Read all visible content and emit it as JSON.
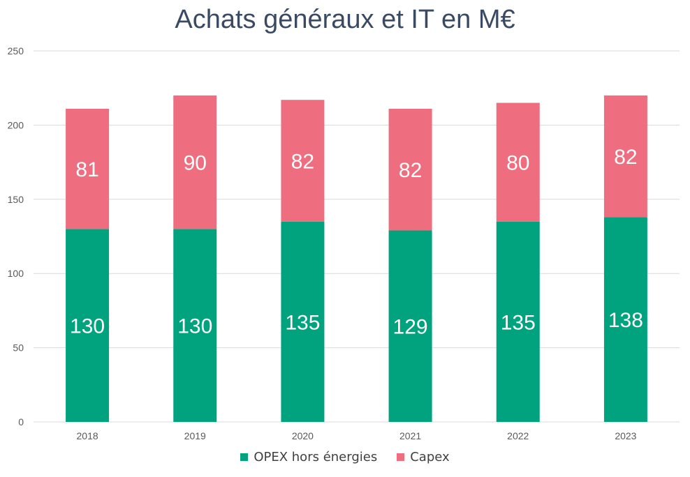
{
  "colors": {
    "opex": "#00a37e",
    "capex": "#ee6e7f",
    "grid": "#d9d9d9",
    "title": "#3b4a63"
  },
  "chart_data": {
    "type": "bar",
    "stacked": true,
    "title": "Achats généraux et IT en M€",
    "categories": [
      "2018",
      "2019",
      "2020",
      "2021",
      "2022",
      "2023"
    ],
    "series": [
      {
        "name": "OPEX hors énergies",
        "values": [
          130,
          130,
          135,
          129,
          135,
          138
        ]
      },
      {
        "name": "Capex",
        "values": [
          81,
          90,
          82,
          82,
          80,
          82
        ]
      }
    ],
    "ylim": [
      0,
      250
    ],
    "yticks": [
      0,
      50,
      100,
      150,
      200,
      250
    ],
    "grid": true,
    "legend_position": "bottom"
  }
}
